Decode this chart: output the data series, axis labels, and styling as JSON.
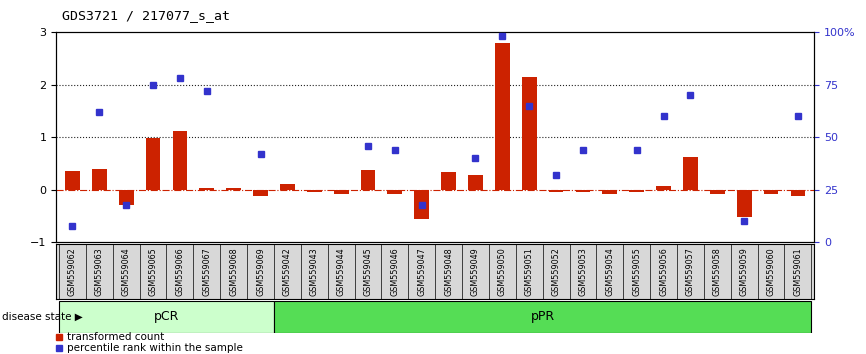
{
  "title": "GDS3721 / 217077_s_at",
  "samples": [
    "GSM559062",
    "GSM559063",
    "GSM559064",
    "GSM559065",
    "GSM559066",
    "GSM559067",
    "GSM559068",
    "GSM559069",
    "GSM559042",
    "GSM559043",
    "GSM559044",
    "GSM559045",
    "GSM559046",
    "GSM559047",
    "GSM559048",
    "GSM559049",
    "GSM559050",
    "GSM559051",
    "GSM559052",
    "GSM559053",
    "GSM559054",
    "GSM559055",
    "GSM559056",
    "GSM559057",
    "GSM559058",
    "GSM559059",
    "GSM559060",
    "GSM559061"
  ],
  "transformed_count": [
    0.35,
    0.4,
    -0.28,
    0.98,
    1.12,
    0.04,
    0.04,
    -0.12,
    0.12,
    -0.05,
    -0.07,
    0.38,
    -0.07,
    -0.55,
    0.33,
    0.28,
    2.78,
    2.15,
    -0.05,
    -0.05,
    -0.08,
    -0.05,
    0.08,
    0.62,
    -0.08,
    -0.52,
    -0.08,
    -0.12
  ],
  "percentile_rank": [
    8,
    62,
    18,
    75,
    78,
    72,
    null,
    42,
    null,
    null,
    null,
    46,
    44,
    18,
    null,
    40,
    98,
    65,
    32,
    44,
    null,
    44,
    60,
    70,
    null,
    10,
    null,
    60
  ],
  "pCR_count": 8,
  "pPR_count": 20,
  "ylim_left": [
    -1,
    3
  ],
  "ylim_right": [
    0,
    100
  ],
  "bar_color": "#cc2200",
  "point_color": "#3333cc",
  "pCR_color": "#ccffcc",
  "pPR_color": "#55dd55",
  "hline_color": "#cc2200",
  "dotted_color": "#222222",
  "background_color": "#ffffff",
  "axis_bg": "#ffffff",
  "legend_red_label": "transformed count",
  "legend_blue_label": "percentile rank within the sample",
  "disease_state_label": "disease state",
  "pCR_label": "pCR",
  "pPR_label": "pPR"
}
